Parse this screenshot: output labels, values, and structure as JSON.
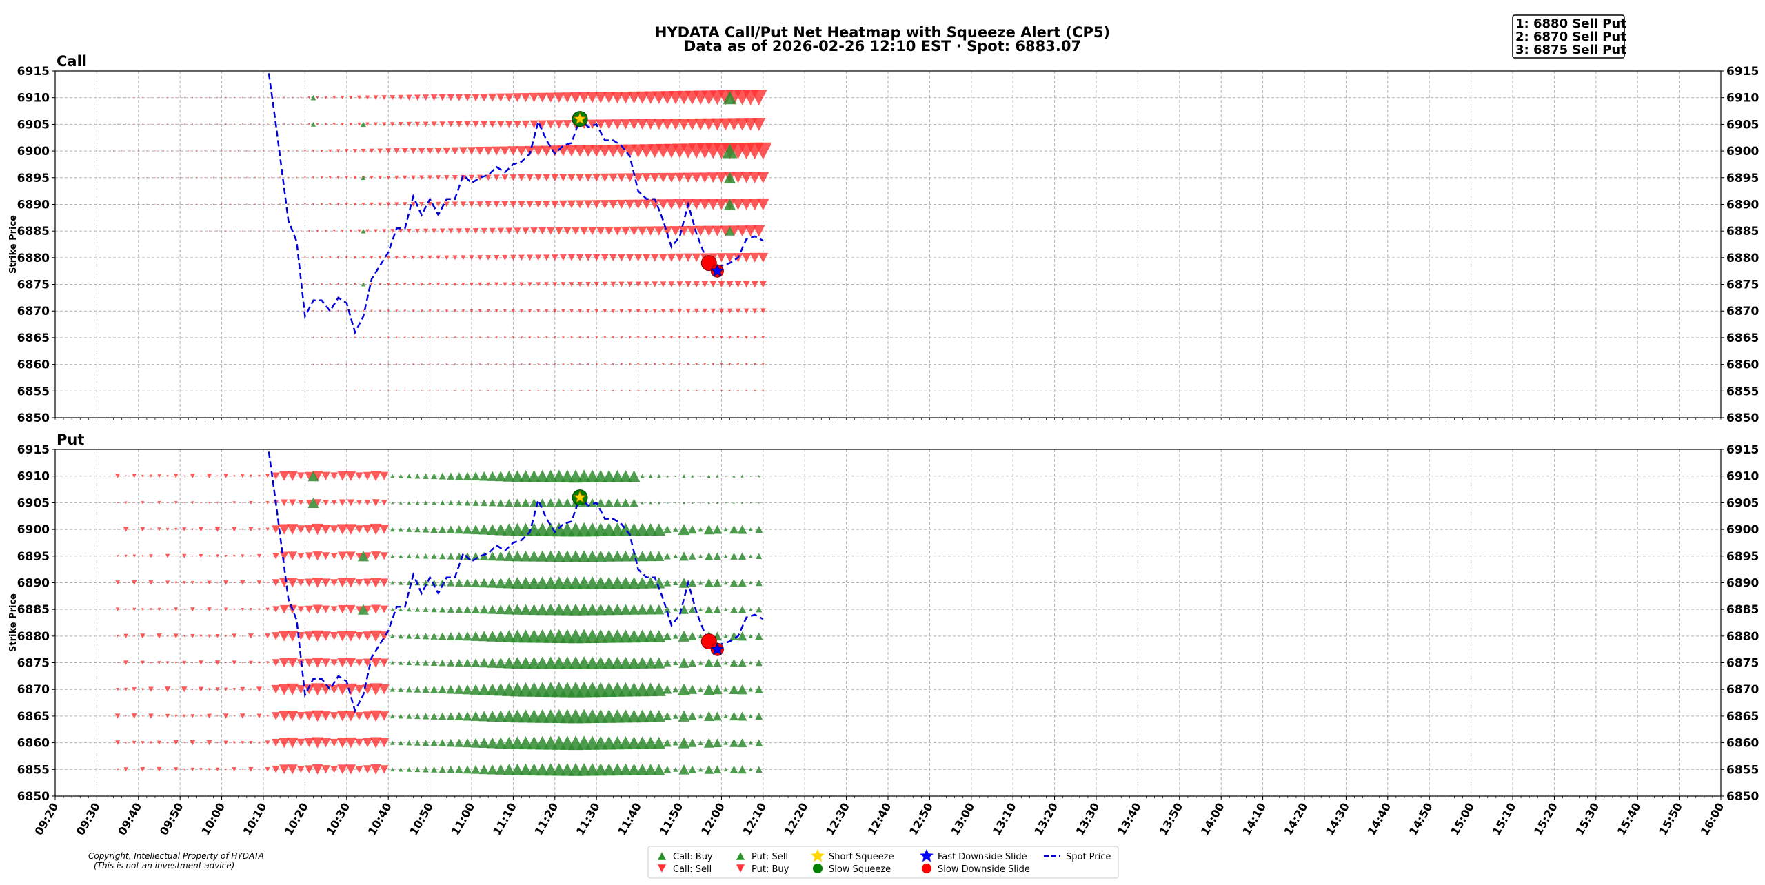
{
  "title_line1": "HYDATA Call/Put Net Heatmap with Squeeze Alert (CP5)",
  "title_line2": "Data as of 2026-02-26 12:10 EST · Spot: 6883.07",
  "top_strikes": [
    "1: 6880 Sell Put",
    "2: 6870 Sell Put",
    "3: 6875 Sell Put"
  ],
  "copyright_line1": "Copyright, Intellectual Property of HYDATA",
  "copyright_line2": "(This is not an investment advice)",
  "colors": {
    "bullish": "#2e8b2e",
    "bearish": "#ff3030",
    "spot": "#0000dd",
    "short_squeeze": "#ffd700",
    "slow_squeeze": "#008000",
    "fast_downside": "#0000ff",
    "slow_downside": "#ff0000"
  },
  "legend": [
    {
      "label": "Call: Buy",
      "marker": "triangle-up",
      "color": "#008000"
    },
    {
      "label": "Call: Sell",
      "marker": "triangle-down",
      "color": "#ff0000"
    },
    {
      "label": "Put: Sell",
      "marker": "triangle-up",
      "color": "#008000"
    },
    {
      "label": "Put: Buy",
      "marker": "triangle-down",
      "color": "#ff0000"
    },
    {
      "label": "Short Squeeze",
      "marker": "star",
      "color": "#ffd700"
    },
    {
      "label": "Slow Squeeze",
      "marker": "circle",
      "color": "#008000"
    },
    {
      "label": "Fast Downside Slide",
      "marker": "star",
      "color": "#0000ff"
    },
    {
      "label": "Slow Downside Slide",
      "marker": "circle",
      "color": "#ff0000"
    },
    {
      "label": "Spot Price",
      "marker": "dashed-line",
      "color": "#0000dd"
    }
  ],
  "chart_data": [
    {
      "type": "scatter",
      "panel": "Call",
      "title": "Call",
      "ylabel": "Strike Price",
      "ylim": [
        6850,
        6915
      ],
      "yticks": [
        6850,
        6855,
        6860,
        6865,
        6870,
        6875,
        6880,
        6885,
        6890,
        6895,
        6900,
        6905,
        6910,
        6915
      ],
      "xlim": [
        "09:20",
        "16:00"
      ],
      "grid": true,
      "rows": [
        {
          "strike": 6910,
          "start": "09:35",
          "max_size": 22,
          "type": "sell",
          "peak": 1.0
        },
        {
          "strike": 6905,
          "start": "09:35",
          "max_size": 20,
          "type": "sell",
          "peak": 0.9
        },
        {
          "strike": 6900,
          "start": "09:30",
          "max_size": 24,
          "type": "sell",
          "peak": 1.0
        },
        {
          "strike": 6895,
          "start": "09:40",
          "max_size": 18,
          "type": "sell",
          "peak": 0.85
        },
        {
          "strike": 6890,
          "start": "09:40",
          "max_size": 19,
          "type": "sell",
          "peak": 0.85
        },
        {
          "strike": 6885,
          "start": "09:55",
          "max_size": 18,
          "type": "sell",
          "peak": 0.85
        },
        {
          "strike": 6880,
          "start": "10:20",
          "max_size": 16,
          "type": "sell",
          "peak": 0.8
        },
        {
          "strike": 6875,
          "start": "10:20",
          "max_size": 12,
          "type": "sell",
          "peak": 0.7
        },
        {
          "strike": 6870,
          "start": "10:20",
          "max_size": 10,
          "type": "sell",
          "peak": 0.6
        },
        {
          "strike": 6865,
          "start": "10:22",
          "max_size": 6,
          "type": "sell",
          "peak": 0.4
        },
        {
          "strike": 6860,
          "start": "10:22",
          "max_size": 5,
          "type": "sell",
          "peak": 0.35
        },
        {
          "strike": 6855,
          "start": "10:30",
          "max_size": 3,
          "type": "sell",
          "peak": 0.3
        }
      ],
      "green_markers": [
        {
          "time": "10:22",
          "strike": 6910,
          "size": 8
        },
        {
          "time": "10:22",
          "strike": 6905,
          "size": 7
        },
        {
          "time": "10:34",
          "strike": 6905,
          "size": 8
        },
        {
          "time": "10:34",
          "strike": 6895,
          "size": 7
        },
        {
          "time": "10:34",
          "strike": 6885,
          "size": 7
        },
        {
          "time": "10:34",
          "strike": 6875,
          "size": 6
        },
        {
          "time": "12:02",
          "strike": 6910,
          "size": 20
        },
        {
          "time": "12:02",
          "strike": 6900,
          "size": 22
        },
        {
          "time": "12:02",
          "strike": 6895,
          "size": 17
        },
        {
          "time": "12:02",
          "strike": 6890,
          "size": 17
        },
        {
          "time": "12:02",
          "strike": 6885,
          "size": 14
        }
      ],
      "alerts": [
        {
          "type": "short_squeeze_on_slow",
          "time": "11:26",
          "strike": 6906
        },
        {
          "type": "slow_downside",
          "time": "11:57",
          "strike": 6879
        },
        {
          "type": "fast_downside",
          "time": "11:59",
          "strike": 6877.5
        }
      ]
    },
    {
      "type": "scatter",
      "panel": "Put",
      "title": "Put",
      "ylabel": "Strike Price",
      "ylim": [
        6850,
        6915
      ],
      "yticks": [
        6850,
        6855,
        6860,
        6865,
        6870,
        6875,
        6880,
        6885,
        6890,
        6895,
        6900,
        6905,
        6910,
        6915
      ],
      "xlim": [
        "09:20",
        "16:00"
      ],
      "grid": true,
      "rows": [
        {
          "strike": 6910,
          "max_size": 20
        },
        {
          "strike": 6905,
          "max_size": 14
        },
        {
          "strike": 6900,
          "max_size": 22
        },
        {
          "strike": 6895,
          "max_size": 18
        },
        {
          "strike": 6890,
          "max_size": 20
        },
        {
          "strike": 6885,
          "max_size": 18
        },
        {
          "strike": 6880,
          "max_size": 22
        },
        {
          "strike": 6875,
          "max_size": 20
        },
        {
          "strike": 6870,
          "max_size": 24
        },
        {
          "strike": 6865,
          "max_size": 22
        },
        {
          "strike": 6860,
          "max_size": 22
        },
        {
          "strike": 6855,
          "max_size": 20
        }
      ],
      "segments": [
        {
          "from": "09:35",
          "to": "10:12",
          "type": "buy",
          "scale": 0.45
        },
        {
          "from": "10:13",
          "to": "10:40",
          "type": "buy",
          "scale": 1.0
        },
        {
          "from": "10:41",
          "to": "12:10",
          "type": "sell",
          "scale": 1.0
        }
      ],
      "alerts": [
        {
          "type": "short_squeeze_on_slow",
          "time": "11:26",
          "strike": 6906
        },
        {
          "type": "slow_downside",
          "time": "11:57",
          "strike": 6879
        },
        {
          "type": "fast_downside",
          "time": "11:59",
          "strike": 6877.5
        }
      ]
    }
  ],
  "spot_series": {
    "name": "Spot Price",
    "points": [
      [
        "10:00",
        6918
      ],
      [
        "10:10",
        6922
      ],
      [
        "10:13",
        6905
      ],
      [
        "10:16",
        6887
      ],
      [
        "10:18",
        6883
      ],
      [
        "10:20",
        6869
      ],
      [
        "10:22",
        6872
      ],
      [
        "10:24",
        6872
      ],
      [
        "10:26",
        6870
      ],
      [
        "10:28",
        6872.5
      ],
      [
        "10:30",
        6871.5
      ],
      [
        "10:32",
        6866
      ],
      [
        "10:34",
        6869
      ],
      [
        "10:36",
        6876
      ],
      [
        "10:40",
        6881
      ],
      [
        "10:42",
        6885.5
      ],
      [
        "10:44",
        6885.5
      ],
      [
        "10:46",
        6891.5
      ],
      [
        "10:48",
        6888
      ],
      [
        "10:50",
        6891
      ],
      [
        "10:52",
        6888
      ],
      [
        "10:54",
        6891
      ],
      [
        "10:56",
        6891
      ],
      [
        "10:58",
        6895.5
      ],
      [
        "11:00",
        6894
      ],
      [
        "11:02",
        6895
      ],
      [
        "11:04",
        6895.5
      ],
      [
        "11:06",
        6897
      ],
      [
        "11:08",
        6896
      ],
      [
        "11:10",
        6897.5
      ],
      [
        "11:12",
        6898
      ],
      [
        "11:14",
        6899.5
      ],
      [
        "11:16",
        6905.5
      ],
      [
        "11:18",
        6902
      ],
      [
        "11:20",
        6899.5
      ],
      [
        "11:22",
        6901
      ],
      [
        "11:24",
        6901.5
      ],
      [
        "11:26",
        6906
      ],
      [
        "11:28",
        6904.5
      ],
      [
        "11:30",
        6905
      ],
      [
        "11:32",
        6902
      ],
      [
        "11:34",
        6902
      ],
      [
        "11:36",
        6901
      ],
      [
        "11:38",
        6899
      ],
      [
        "11:40",
        6892.5
      ],
      [
        "11:42",
        6891
      ],
      [
        "11:44",
        6891
      ],
      [
        "11:46",
        6887
      ],
      [
        "11:48",
        6882
      ],
      [
        "11:50",
        6884
      ],
      [
        "11:52",
        6890
      ],
      [
        "11:54",
        6884.5
      ],
      [
        "11:56",
        6880.5
      ],
      [
        "11:58",
        6878
      ],
      [
        "12:00",
        6878.5
      ],
      [
        "12:02",
        6879
      ],
      [
        "12:04",
        6880
      ],
      [
        "12:06",
        6883.5
      ],
      [
        "12:08",
        6884
      ],
      [
        "12:10",
        6883.2
      ]
    ]
  },
  "xticks": [
    "09:20",
    "09:30",
    "09:40",
    "09:50",
    "10:00",
    "10:10",
    "10:20",
    "10:30",
    "10:40",
    "10:50",
    "11:00",
    "11:10",
    "11:20",
    "11:30",
    "11:40",
    "11:50",
    "12:00",
    "12:10",
    "12:20",
    "12:30",
    "12:40",
    "12:50",
    "13:00",
    "13:10",
    "13:20",
    "13:30",
    "13:40",
    "13:50",
    "14:00",
    "14:10",
    "14:20",
    "14:30",
    "14:40",
    "14:50",
    "15:00",
    "15:10",
    "15:20",
    "15:30",
    "15:40",
    "15:50",
    "16:00"
  ],
  "marker_interval_min": 2,
  "data_end": "12:10"
}
